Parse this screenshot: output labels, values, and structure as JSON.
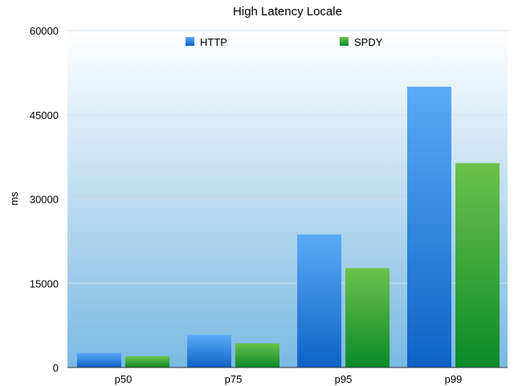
{
  "chart_data": {
    "type": "bar",
    "title": "High Latency Locale",
    "xlabel": "",
    "ylabel": "ms",
    "categories": [
      "p50",
      "p75",
      "p95",
      "p99"
    ],
    "series": [
      {
        "name": "HTTP",
        "values": [
          2600,
          5800,
          23700,
          50000
        ]
      },
      {
        "name": "SPDY",
        "values": [
          2000,
          4300,
          17700,
          36400
        ]
      }
    ],
    "ylim": [
      0,
      60000
    ],
    "yticks": [
      "0",
      "15000",
      "30000",
      "45000",
      "60000"
    ],
    "legend_position": "top",
    "grid": true,
    "colors": {
      "HTTP_top": "#5aabf7",
      "HTTP_bottom": "#0e62c4",
      "SPDY_top": "#6cc24a",
      "SPDY_bottom": "#0a8a2a",
      "plot_bg_top": "#ffffff",
      "plot_bg_bottom": "#7ab9e2"
    }
  }
}
